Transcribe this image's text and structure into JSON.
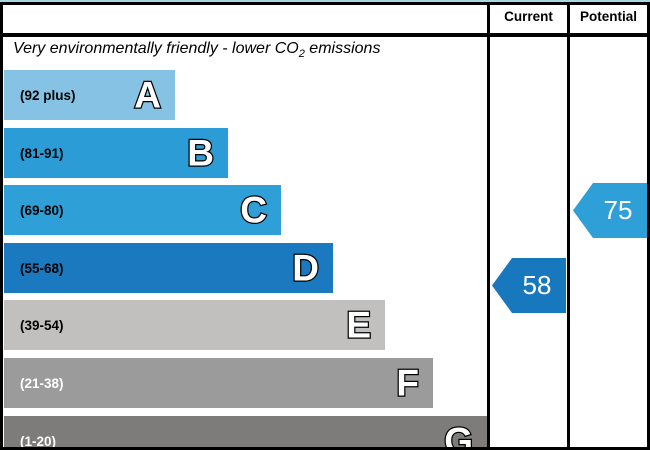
{
  "header": {
    "current_label": "Current",
    "potential_label": "Potential"
  },
  "title": {
    "prefix": "Very environmentally friendly - lower CO",
    "sub": "2",
    "suffix": " emissions"
  },
  "chart_data": {
    "type": "bar",
    "title": "Very environmentally friendly - lower CO2 emissions",
    "scale": [
      1,
      100
    ],
    "bands": [
      {
        "letter": "A",
        "range": "(92 plus)",
        "min": 92,
        "max": 100,
        "color": "#85c2e3",
        "label_color": "#000000"
      },
      {
        "letter": "B",
        "range": "(81-91)",
        "min": 81,
        "max": 91,
        "color": "#2b9cd6",
        "label_color": "#000000"
      },
      {
        "letter": "C",
        "range": "(69-80)",
        "min": 69,
        "max": 80,
        "color": "#2f9fd8",
        "label_color": "#000000"
      },
      {
        "letter": "D",
        "range": "(55-68)",
        "min": 55,
        "max": 68,
        "color": "#1b7abf",
        "label_color": "#000000"
      },
      {
        "letter": "E",
        "range": "(39-54)",
        "min": 39,
        "max": 54,
        "color": "#c1c0bf",
        "label_color": "#000000"
      },
      {
        "letter": "F",
        "range": "(21-38)",
        "min": 21,
        "max": 38,
        "color": "#9b9b9c",
        "label_color": "#ffffff"
      },
      {
        "letter": "G",
        "range": "(1-20)",
        "min": 1,
        "max": 20,
        "color": "#7d7c7b",
        "label_color": "#ffffff"
      }
    ],
    "current": {
      "value": 58,
      "band": "D",
      "color": "#1878bd"
    },
    "potential": {
      "value": 75,
      "band": "C",
      "color": "#2f9fd8"
    }
  }
}
